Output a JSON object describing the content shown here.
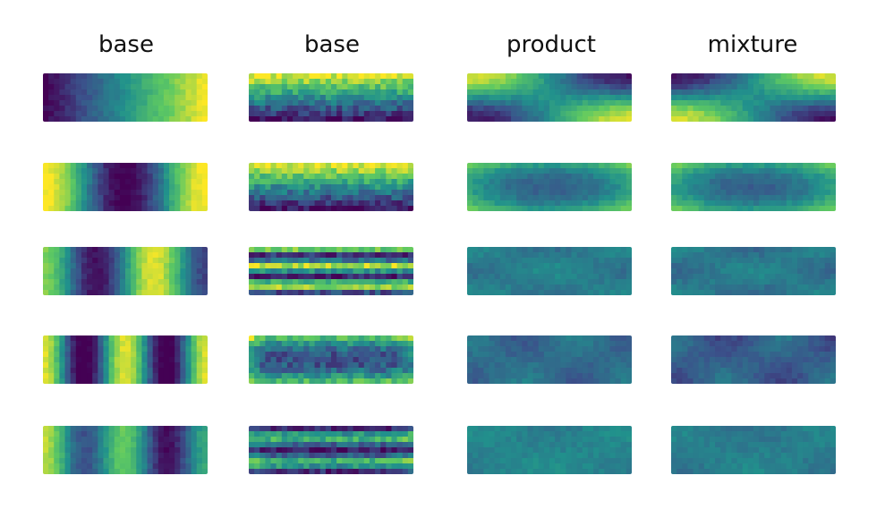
{
  "columns": [
    {
      "title": "base"
    },
    {
      "title": "base"
    },
    {
      "title": "product"
    },
    {
      "title": "mixture"
    }
  ],
  "grid": {
    "rows": 5,
    "cols": 4
  },
  "colormap": {
    "name": "viridis",
    "stops": [
      "#440154",
      "#3b528b",
      "#21918c",
      "#5ec962",
      "#fde725"
    ]
  },
  "panels": [
    [
      {
        "pattern": "x-gradient"
      },
      {
        "pattern": "y-gradient"
      },
      {
        "pattern": "product-saddle"
      },
      {
        "pattern": "mixture-saddle"
      }
    ],
    [
      {
        "pattern": "x-cosine"
      },
      {
        "pattern": "y-gradient-noisy"
      },
      {
        "pattern": "product-center-dark"
      },
      {
        "pattern": "mixture-center-dark"
      }
    ],
    [
      {
        "pattern": "x-mode3"
      },
      {
        "pattern": "y-stripes"
      },
      {
        "pattern": "product-mid-flat"
      },
      {
        "pattern": "mixture-mid-flat"
      }
    ],
    [
      {
        "pattern": "x-mode4"
      },
      {
        "pattern": "y-center-dark"
      },
      {
        "pattern": "product-edge-dark"
      },
      {
        "pattern": "mixture-edge-dark"
      }
    ],
    [
      {
        "pattern": "x-mode5"
      },
      {
        "pattern": "y-dark-bands"
      },
      {
        "pattern": "product-flat"
      },
      {
        "pattern": "mixture-flat"
      }
    ]
  ]
}
